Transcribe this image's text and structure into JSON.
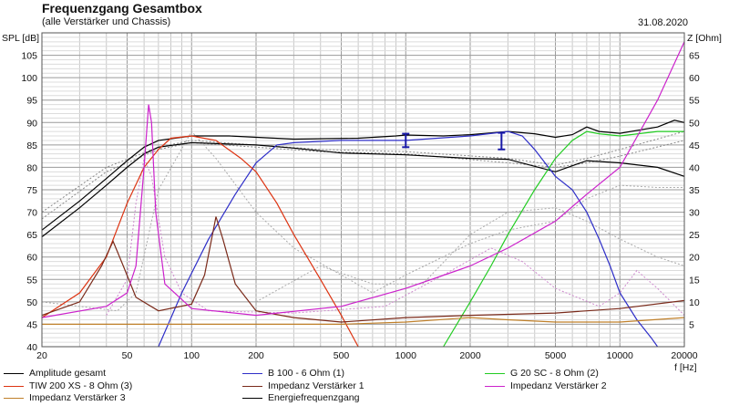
{
  "chart_data": {
    "type": "line",
    "title": "Frequenzgang Gesamtbox",
    "subtitle": "(alle Verstärker und Chassis)",
    "date": "31.08.2020",
    "ylabel": "SPL [dB]",
    "y2label": "Z [Ohm]",
    "xlabel": "f [Hz]",
    "xscale": "log",
    "xlim": [
      20,
      20000
    ],
    "ylim": [
      40,
      110
    ],
    "y2lim": [
      0,
      70
    ],
    "grid": true,
    "legend_position": "bottom",
    "x_ticks": [
      "20",
      "50",
      "100",
      "200",
      "500",
      "1000",
      "2000",
      "5000",
      "10000",
      "20000"
    ],
    "y_ticks": [
      "45",
      "50",
      "55",
      "60",
      "65",
      "70",
      "75",
      "80",
      "85",
      "90",
      "95",
      "100",
      "105"
    ],
    "y2_ticks": [
      "5",
      "10",
      "15",
      "20",
      "25",
      "30",
      "35",
      "40",
      "45",
      "50",
      "55",
      "60",
      "65"
    ],
    "series": [
      {
        "name": "Amplitude gesamt",
        "axis": "left",
        "color": "#000000",
        "style": "solid",
        "points": [
          [
            20,
            66
          ],
          [
            30,
            72.5
          ],
          [
            40,
            77.5
          ],
          [
            50,
            81.5
          ],
          [
            60,
            84.5
          ],
          [
            70,
            86
          ],
          [
            100,
            87
          ],
          [
            150,
            87
          ],
          [
            300,
            86.3
          ],
          [
            600,
            86.5
          ],
          [
            900,
            87
          ],
          [
            1000,
            87.2
          ],
          [
            1500,
            87
          ],
          [
            2000,
            87.3
          ],
          [
            3000,
            88
          ],
          [
            4000,
            87.5
          ],
          [
            5000,
            86.7
          ],
          [
            6000,
            87.3
          ],
          [
            7000,
            89
          ],
          [
            8000,
            88
          ],
          [
            10000,
            87.6
          ],
          [
            15000,
            89
          ],
          [
            18000,
            90.5
          ],
          [
            20000,
            90
          ]
        ]
      },
      {
        "name": "Energiefrequenzgang",
        "axis": "left",
        "color": "#000000",
        "style": "solid",
        "points": [
          [
            20,
            64.5
          ],
          [
            30,
            71
          ],
          [
            40,
            76
          ],
          [
            50,
            80
          ],
          [
            60,
            83
          ],
          [
            70,
            84.5
          ],
          [
            100,
            85.5
          ],
          [
            200,
            85
          ],
          [
            300,
            84.3
          ],
          [
            500,
            83.2
          ],
          [
            1000,
            82.8
          ],
          [
            2000,
            82
          ],
          [
            3000,
            81.8
          ],
          [
            5000,
            79
          ],
          [
            7000,
            81.5
          ],
          [
            10000,
            81
          ],
          [
            15000,
            80
          ],
          [
            20000,
            78
          ]
        ]
      },
      {
        "name": "B 100 - 6 Ohm (1)",
        "axis": "left",
        "color": "#2e2ec8",
        "style": "solid",
        "points": [
          [
            70,
            40
          ],
          [
            90,
            52
          ],
          [
            120,
            64
          ],
          [
            160,
            74
          ],
          [
            200,
            81
          ],
          [
            250,
            85
          ],
          [
            300,
            85.5
          ],
          [
            500,
            86
          ],
          [
            1000,
            86
          ],
          [
            2000,
            87
          ],
          [
            3000,
            88
          ],
          [
            3500,
            87
          ],
          [
            4000,
            84
          ],
          [
            5000,
            78
          ],
          [
            6000,
            75
          ],
          [
            7000,
            70
          ],
          [
            8000,
            64
          ],
          [
            9000,
            58
          ],
          [
            10000,
            52
          ],
          [
            12000,
            46
          ],
          [
            14000,
            42
          ],
          [
            15000,
            40
          ]
        ]
      },
      {
        "name": "G 20 SC - 8 Ohm (2)",
        "axis": "left",
        "color": "#22cc22",
        "style": "solid",
        "points": [
          [
            1500,
            40
          ],
          [
            2000,
            50
          ],
          [
            2500,
            58
          ],
          [
            3000,
            65
          ],
          [
            4000,
            75
          ],
          [
            5000,
            82
          ],
          [
            6000,
            86
          ],
          [
            7000,
            88
          ],
          [
            8000,
            87.5
          ],
          [
            10000,
            87
          ],
          [
            15000,
            88
          ],
          [
            20000,
            88
          ]
        ]
      },
      {
        "name": "TIW 200 XS - 8 Ohm (3)",
        "axis": "left",
        "color": "#dd3311",
        "style": "solid",
        "points": [
          [
            20,
            46.5
          ],
          [
            30,
            52
          ],
          [
            40,
            60
          ],
          [
            50,
            72
          ],
          [
            60,
            80
          ],
          [
            70,
            84
          ],
          [
            80,
            86.5
          ],
          [
            100,
            87
          ],
          [
            130,
            86
          ],
          [
            170,
            82
          ],
          [
            200,
            79
          ],
          [
            250,
            72
          ],
          [
            300,
            65
          ],
          [
            400,
            55
          ],
          [
            500,
            47
          ],
          [
            600,
            40
          ]
        ]
      },
      {
        "name": "Impedanz Verstärker 1",
        "axis": "right",
        "color": "#7a2a1a",
        "style": "solid",
        "points": [
          [
            20,
            7
          ],
          [
            30,
            10
          ],
          [
            38,
            18
          ],
          [
            43,
            23.5
          ],
          [
            48,
            18
          ],
          [
            55,
            11
          ],
          [
            70,
            8
          ],
          [
            100,
            9.5
          ],
          [
            115,
            16
          ],
          [
            130,
            29
          ],
          [
            140,
            24
          ],
          [
            160,
            14
          ],
          [
            200,
            8
          ],
          [
            300,
            6.5
          ],
          [
            500,
            5.5
          ],
          [
            1000,
            6.5
          ],
          [
            2000,
            7
          ],
          [
            5000,
            7.5
          ],
          [
            10000,
            8.5
          ],
          [
            20000,
            10.3
          ]
        ]
      },
      {
        "name": "Impedanz Verstärker 2",
        "axis": "right",
        "color": "#cc22cc",
        "style": "solid",
        "points": [
          [
            20,
            6.5
          ],
          [
            40,
            9
          ],
          [
            50,
            12
          ],
          [
            55,
            18
          ],
          [
            60,
            40
          ],
          [
            63,
            54
          ],
          [
            65,
            50
          ],
          [
            68,
            30
          ],
          [
            75,
            14
          ],
          [
            100,
            8.5
          ],
          [
            200,
            7
          ],
          [
            500,
            9
          ],
          [
            1000,
            13
          ],
          [
            2000,
            18
          ],
          [
            3000,
            22
          ],
          [
            5000,
            28
          ],
          [
            7000,
            34
          ],
          [
            10000,
            40
          ],
          [
            15000,
            55
          ],
          [
            20000,
            68
          ]
        ]
      },
      {
        "name": "Impedanz Verstärker 3",
        "axis": "right",
        "color": "#c0802a",
        "style": "solid",
        "points": [
          [
            20,
            5
          ],
          [
            500,
            5
          ],
          [
            1000,
            5.5
          ],
          [
            2000,
            6.5
          ],
          [
            3000,
            6
          ],
          [
            5000,
            5.5
          ],
          [
            10000,
            5.5
          ],
          [
            20000,
            6.5
          ]
        ]
      }
    ],
    "dotted_series": [
      {
        "color": "#888888",
        "axis": "left",
        "points": [
          [
            20,
            70
          ],
          [
            40,
            80
          ],
          [
            70,
            84.5
          ],
          [
            100,
            86
          ],
          [
            200,
            85
          ],
          [
            400,
            84
          ],
          [
            1000,
            83.5
          ],
          [
            3000,
            82
          ],
          [
            5000,
            80.5
          ],
          [
            7000,
            82
          ],
          [
            10000,
            84
          ],
          [
            20000,
            88
          ]
        ]
      },
      {
        "color": "#888888",
        "axis": "left",
        "points": [
          [
            20,
            68.5
          ],
          [
            40,
            79
          ],
          [
            70,
            84
          ],
          [
            100,
            85.5
          ],
          [
            200,
            84.5
          ],
          [
            400,
            83.5
          ],
          [
            1000,
            83
          ],
          [
            3000,
            81
          ],
          [
            5000,
            80
          ],
          [
            7000,
            81
          ],
          [
            10000,
            82.5
          ],
          [
            20000,
            86
          ]
        ]
      },
      {
        "color": "#aaaaaa",
        "axis": "left",
        "points": [
          [
            20,
            50
          ],
          [
            45,
            48
          ],
          [
            55,
            52
          ],
          [
            70,
            75
          ],
          [
            100,
            88
          ],
          [
            130,
            82
          ],
          [
            200,
            70
          ],
          [
            300,
            62
          ],
          [
            500,
            56
          ],
          [
            700,
            52
          ],
          [
            1000,
            56
          ],
          [
            2000,
            63
          ],
          [
            3000,
            66
          ],
          [
            5000,
            68
          ],
          [
            7000,
            73
          ],
          [
            10000,
            76
          ],
          [
            15000,
            75.5
          ],
          [
            20000,
            75.5
          ]
        ]
      },
      {
        "color": "#cc88cc",
        "axis": "left",
        "points": [
          [
            40,
            47
          ],
          [
            50,
            55
          ],
          [
            55,
            72
          ],
          [
            60,
            82
          ],
          [
            65,
            78
          ],
          [
            75,
            60
          ],
          [
            90,
            52
          ],
          [
            120,
            48
          ],
          [
            300,
            47.5
          ],
          [
            800,
            49
          ],
          [
            1500,
            56
          ],
          [
            2500,
            62
          ],
          [
            3500,
            59
          ],
          [
            5000,
            53
          ],
          [
            8000,
            49
          ],
          [
            10000,
            52
          ],
          [
            12000,
            57
          ],
          [
            15000,
            53
          ],
          [
            20000,
            47
          ]
        ]
      },
      {
        "color": "#aaaaaa",
        "axis": "left",
        "points": [
          [
            200,
            50
          ],
          [
            400,
            58
          ],
          [
            700,
            54
          ],
          [
            1200,
            54
          ],
          [
            2000,
            65
          ],
          [
            3000,
            70
          ],
          [
            5000,
            71
          ],
          [
            7000,
            68
          ],
          [
            10000,
            64
          ],
          [
            15000,
            60
          ],
          [
            20000,
            58
          ]
        ]
      }
    ],
    "marker_points": [
      {
        "x": 1000,
        "y_low": 84.5,
        "y_high": 87.5
      },
      {
        "x": 2800,
        "y_low": 84,
        "y_high": 87.7
      }
    ]
  },
  "legend": [
    {
      "label": "Amplitude gesamt",
      "color": "#000000"
    },
    {
      "label": "B 100 - 6 Ohm (1)",
      "color": "#2e2ec8"
    },
    {
      "label": "G 20 SC - 8 Ohm (2)",
      "color": "#22cc22"
    },
    {
      "label": "TIW 200 XS - 8 Ohm (3)",
      "color": "#dd3311"
    },
    {
      "label": "Impedanz Verstärker 1",
      "color": "#7a2a1a"
    },
    {
      "label": "Impedanz Verstärker 2",
      "color": "#cc22cc"
    },
    {
      "label": "Impedanz Verstärker 3",
      "color": "#c0802a"
    },
    {
      "label": "Energiefrequenzgang",
      "color": "#000000"
    }
  ]
}
